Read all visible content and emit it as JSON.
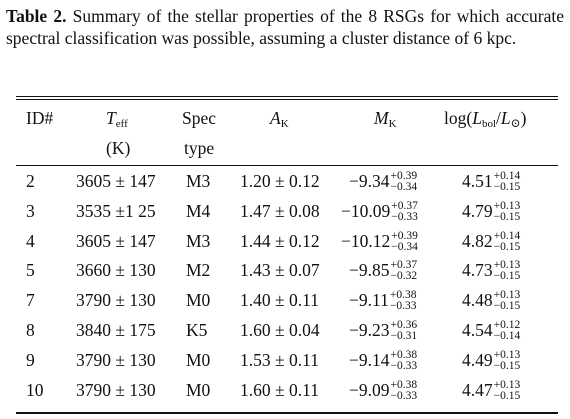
{
  "caption": {
    "label": "Table 2.",
    "text": " Summary of the stellar properties of the 8 RSGs for which accurate spectral classification was possible, assuming a cluster distance of 6 kpc."
  },
  "headers": {
    "id": "ID#",
    "teff_main": "T",
    "teff_sub": "eff",
    "teff_unit": "(K)",
    "spec": "Spec",
    "spec2": "type",
    "ak_main": "A",
    "ak_sub": "K",
    "mk_main": "M",
    "mk_sub": "K",
    "lum_pre": "log(",
    "lum_L": "L",
    "lum_bol": "bol",
    "lum_slash": "/",
    "lum_L2": "L",
    "lum_sun": "⊙",
    "lum_post": ")"
  },
  "rows": [
    {
      "id": "2",
      "teff": "3605 ± 147",
      "spec": "M3",
      "ak": "1.20 ± 0.12",
      "mk": "−9.34",
      "mk_up": "+0.39",
      "mk_dn": "−0.34",
      "lum": "4.51",
      "lum_up": "+0.14",
      "lum_dn": "−0.15"
    },
    {
      "id": "3",
      "teff": "3535 ±1 25",
      "spec": "M4",
      "ak": "1.47 ± 0.08",
      "mk": "−10.09",
      "mk_up": "+0.37",
      "mk_dn": "−0.33",
      "lum": "4.79",
      "lum_up": "+0.13",
      "lum_dn": "−0.15"
    },
    {
      "id": "4",
      "teff": "3605 ± 147",
      "spec": "M3",
      "ak": "1.44 ± 0.12",
      "mk": "−10.12",
      "mk_up": "+0.39",
      "mk_dn": "−0.34",
      "lum": "4.82",
      "lum_up": "+0.14",
      "lum_dn": "−0.15"
    },
    {
      "id": "5",
      "teff": "3660 ± 130",
      "spec": "M2",
      "ak": "1.43 ± 0.07",
      "mk": "−9.85",
      "mk_up": "+0.37",
      "mk_dn": "−0.32",
      "lum": "4.73",
      "lum_up": "+0.13",
      "lum_dn": "−0.15"
    },
    {
      "id": "7",
      "teff": "3790 ± 130",
      "spec": "M0",
      "ak": "1.40 ± 0.11",
      "mk": "−9.11",
      "mk_up": "+0.38",
      "mk_dn": "−0.33",
      "lum": "4.48",
      "lum_up": "+0.13",
      "lum_dn": "−0.15"
    },
    {
      "id": "8",
      "teff": "3840 ± 175",
      "spec": "K5",
      "ak": "1.60 ± 0.04",
      "mk": "−9.23",
      "mk_up": "+0.36",
      "mk_dn": "−0.31",
      "lum": "4.54",
      "lum_up": "+0.12",
      "lum_dn": "−0.14"
    },
    {
      "id": "9",
      "teff": "3790 ± 130",
      "spec": "M0",
      "ak": "1.53 ± 0.11",
      "mk": "−9.14",
      "mk_up": "+0.38",
      "mk_dn": "−0.33",
      "lum": "4.49",
      "lum_up": "+0.13",
      "lum_dn": "−0.15"
    },
    {
      "id": "10",
      "teff": "3790 ± 130",
      "spec": "M0",
      "ak": "1.60 ± 0.11",
      "mk": "−9.09",
      "mk_up": "+0.38",
      "mk_dn": "−0.33",
      "lum": "4.47",
      "lum_up": "+0.13",
      "lum_dn": "−0.15"
    }
  ]
}
